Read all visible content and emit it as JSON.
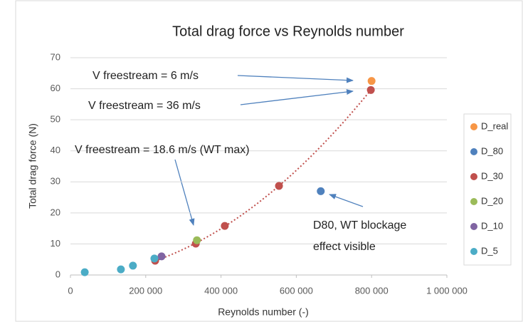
{
  "chart_data": {
    "type": "scatter",
    "title": "Total drag force vs Reynolds number",
    "x_label": "Reynolds number (-)",
    "y_label": "Total drag force (N)",
    "xlim": [
      0,
      1000000
    ],
    "xticks": [
      0,
      {
        "value": 200000,
        "label": "200 000"
      },
      {
        "value": 400000,
        "label": "400 000"
      },
      {
        "value": 600000,
        "label": "600 000"
      },
      {
        "value": 800000,
        "label": "800 000"
      },
      {
        "value": 1000000,
        "label": "1 000 000"
      }
    ],
    "ylim": [
      0,
      70
    ],
    "yticks": [
      0,
      10,
      20,
      30,
      40,
      50,
      60,
      70
    ],
    "grid": true,
    "legend": "right",
    "series": [
      {
        "name": "D_real",
        "color": "#f79646",
        "x": [
          800000
        ],
        "values": [
          62.5
        ]
      },
      {
        "name": "D_80",
        "color": "#4f81bd",
        "x": [
          665000
        ],
        "values": [
          27
        ]
      },
      {
        "name": "D_30",
        "color": "#c0504d",
        "x": [
          225000,
          333000,
          410000,
          554000,
          798000
        ],
        "values": [
          4.6,
          10.1,
          15.8,
          28.7,
          59.6
        ]
      },
      {
        "name": "D_20",
        "color": "#9bbb59",
        "x": [
          336000
        ],
        "values": [
          11.2
        ]
      },
      {
        "name": "D_10",
        "color": "#8064a2",
        "x": [
          242000
        ],
        "values": [
          6.0
        ]
      },
      {
        "name": "D_5",
        "color": "#4bacc6",
        "x": [
          38000,
          134000,
          166000,
          223000
        ],
        "values": [
          0.9,
          1.8,
          3.0,
          5.3
        ]
      }
    ],
    "annotations": [
      "V freestream = 6 m/s",
      "V freestream = 36 m/s",
      "V freestream = 18.6 m/s (WT max)",
      [
        "D80, WT blockage",
        "effect visible"
      ]
    ]
  }
}
